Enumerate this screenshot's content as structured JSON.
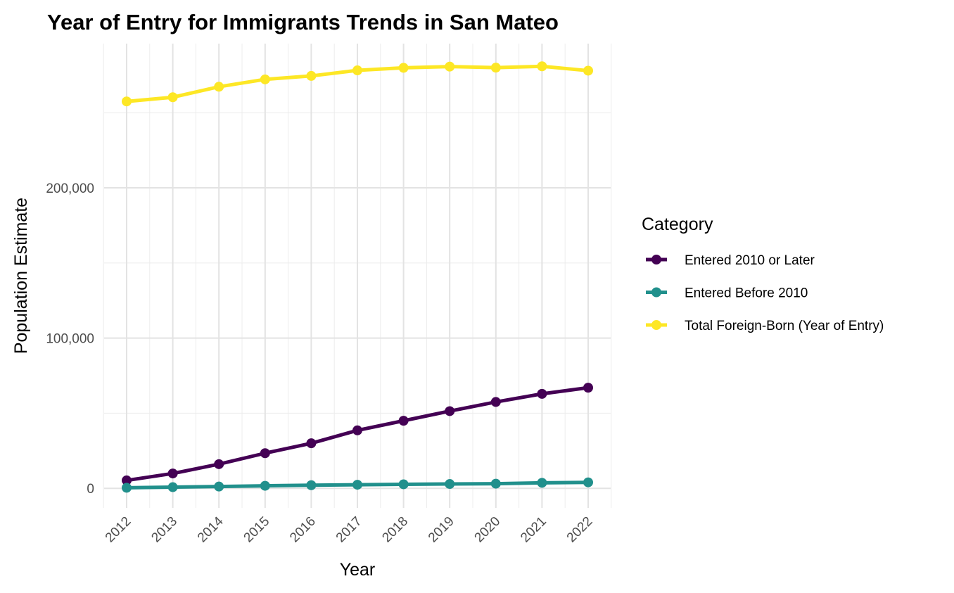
{
  "chart_data": {
    "type": "line",
    "title": "Year of Entry for Immigrants Trends in San Mateo",
    "xlabel": "Year",
    "ylabel": "Population Estimate",
    "x": [
      2012,
      2013,
      2014,
      2015,
      2016,
      2017,
      2018,
      2019,
      2020,
      2021,
      2022
    ],
    "x_tick_labels": [
      "2012",
      "2013",
      "2014",
      "2015",
      "2016",
      "2017",
      "2018",
      "2019",
      "2020",
      "2021",
      "2022"
    ],
    "ylim": [
      -13000,
      296000
    ],
    "y_ticks": [
      0,
      100000,
      200000
    ],
    "y_tick_labels": [
      "0",
      "100,000",
      "200,000"
    ],
    "grid": true,
    "legend": {
      "title": "Category",
      "position": "right"
    },
    "series": [
      {
        "name": "Entered 2010 or Later",
        "color": "#440154",
        "values": [
          5300,
          9900,
          16100,
          23400,
          30000,
          38600,
          45000,
          51400,
          57500,
          62900,
          67000
        ]
      },
      {
        "name": "Entered Before 2010",
        "color": "#21908C",
        "values": [
          400,
          800,
          1200,
          1700,
          2100,
          2400,
          2700,
          2900,
          3100,
          3700,
          4000
        ]
      },
      {
        "name": "Total Foreign-Born (Year of Entry)",
        "color": "#FDE725",
        "values": [
          257500,
          260300,
          267300,
          272200,
          274500,
          278200,
          279900,
          280700,
          280000,
          280900,
          278000
        ]
      }
    ]
  }
}
